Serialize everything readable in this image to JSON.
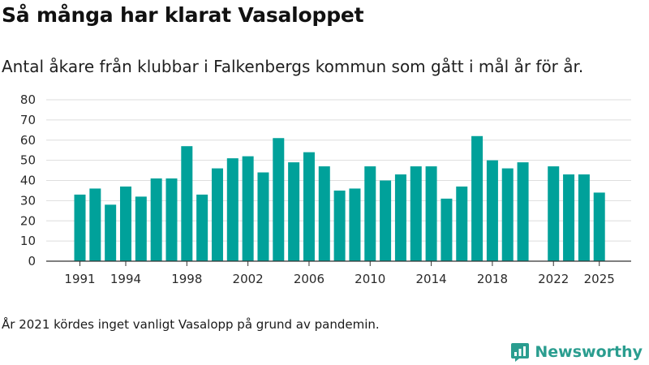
{
  "header": {
    "title": "Så många har klarat Vasaloppet",
    "subtitle": "Antal åkare från klubbar i Falkenbergs kommun som gått i mål år för år."
  },
  "chart_data": {
    "type": "bar",
    "categories": [
      "1991",
      "1992",
      "1993",
      "1994",
      "1995",
      "1996",
      "1997",
      "1998",
      "1999",
      "2000",
      "2001",
      "2002",
      "2003",
      "2004",
      "2005",
      "2006",
      "2007",
      "2008",
      "2009",
      "2010",
      "2011",
      "2012",
      "2013",
      "2014",
      "2015",
      "2016",
      "2017",
      "2018",
      "2019",
      "2020",
      "2021",
      "2022",
      "2023",
      "2024",
      "2025"
    ],
    "values": [
      33,
      36,
      28,
      37,
      32,
      41,
      41,
      57,
      33,
      46,
      51,
      52,
      44,
      61,
      49,
      54,
      47,
      35,
      36,
      47,
      40,
      43,
      47,
      47,
      31,
      37,
      62,
      50,
      46,
      49,
      null,
      47,
      43,
      43,
      34
    ],
    "x_tick_labels": [
      "1991",
      "1994",
      "1998",
      "2002",
      "2006",
      "2010",
      "2014",
      "2018",
      "2022",
      "2025"
    ],
    "y_ticks": [
      0,
      10,
      20,
      30,
      40,
      50,
      60,
      70,
      80
    ],
    "ylim": [
      0,
      80
    ],
    "grid": true,
    "color": "#00a19a"
  },
  "footer": {
    "note": "År 2021 kördes inget vanligt Vasalopp på grund av pandemin.",
    "brand": "Newsworthy",
    "brand_icon": "newsworthy-logo-icon",
    "brand_color": "#2a9d8f"
  }
}
